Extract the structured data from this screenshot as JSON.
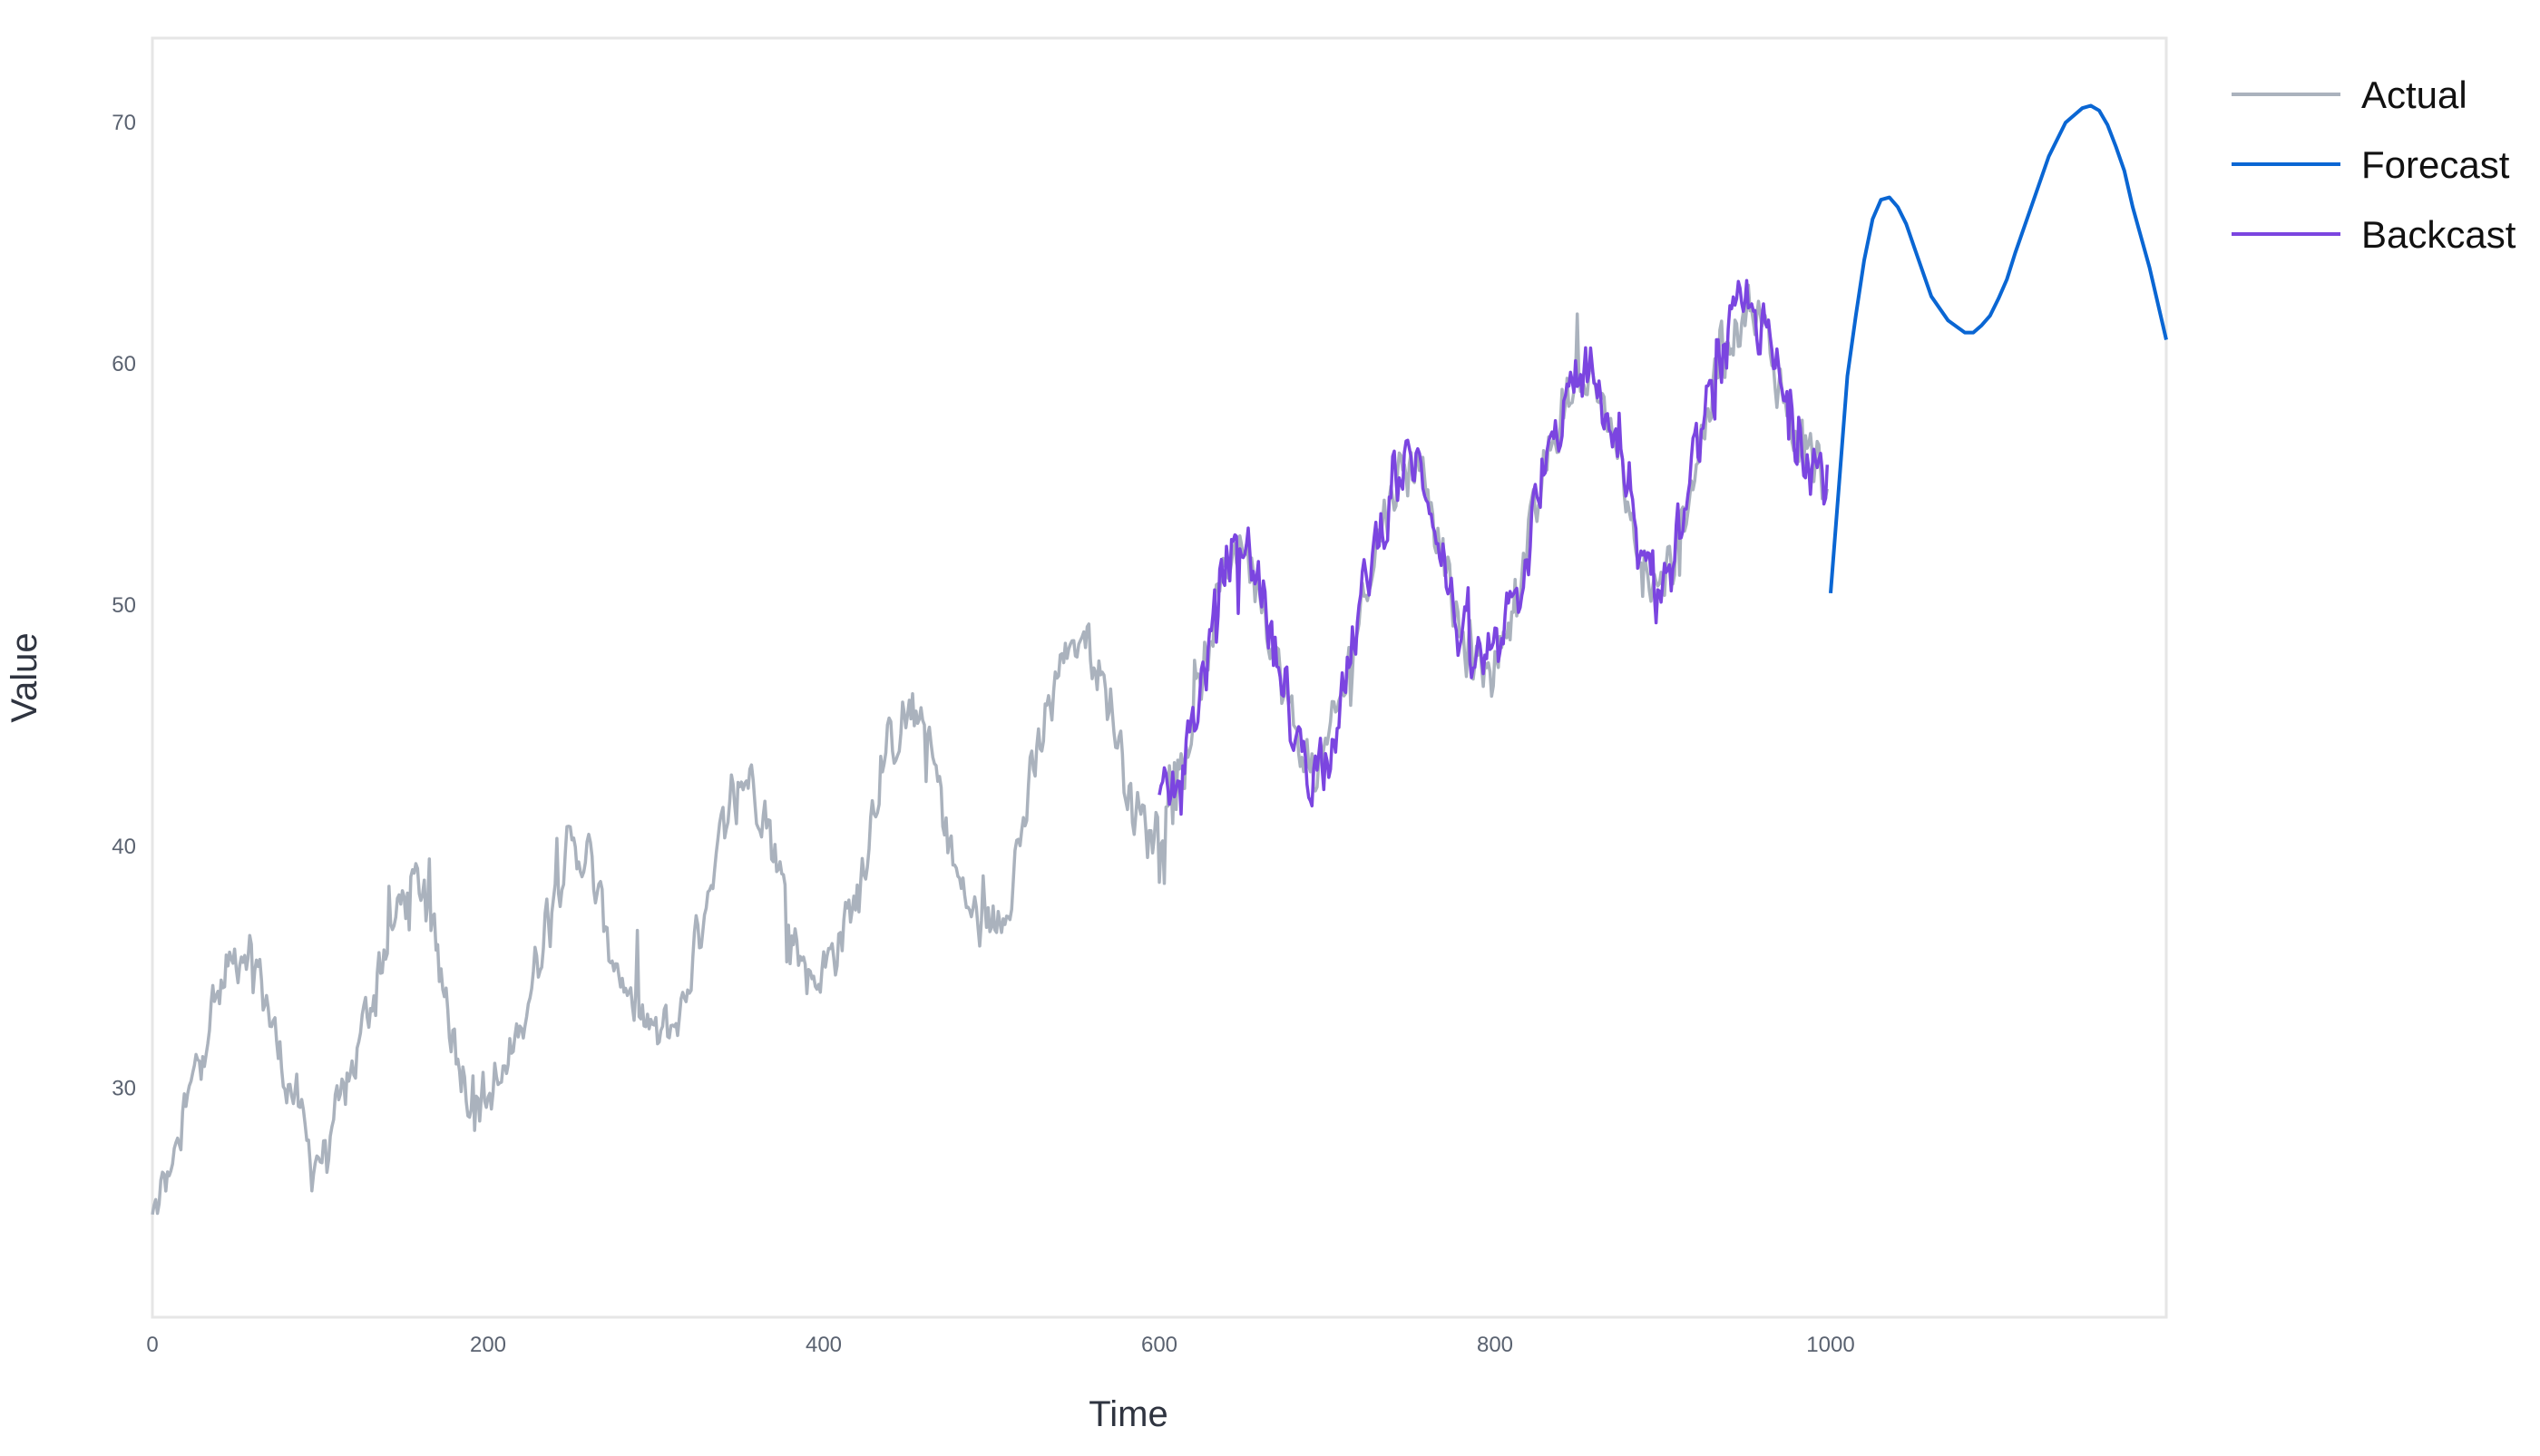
{
  "chart_data": {
    "type": "line",
    "title": "",
    "xlabel": "Time",
    "ylabel": "Value",
    "xlim": [
      0,
      1200
    ],
    "ylim": [
      20.5,
      73.5
    ],
    "x_ticks": [
      0,
      200,
      400,
      600,
      800,
      1000
    ],
    "y_ticks": [
      30,
      40,
      50,
      60,
      70
    ],
    "grid": false,
    "legend_position": "top-right (outside plot)",
    "colors": {
      "Actual": "#aab2bd",
      "Forecast": "#0a66d3",
      "Backcast": "#7b45e0",
      "frame": "#e6e6e6"
    },
    "series": [
      {
        "name": "Actual",
        "x": [
          0,
          15,
          30,
          45,
          55,
          65,
          75,
          85,
          95,
          105,
          120,
          135,
          150,
          160,
          170,
          180,
          190,
          200,
          210,
          225,
          240,
          250,
          260,
          270,
          285,
          300,
          315,
          330,
          345,
          355,
          365,
          375,
          385,
          395,
          405,
          420,
          435,
          450,
          460,
          470,
          480,
          490,
          500,
          510,
          525,
          540,
          555,
          565,
          575,
          585,
          595,
          610,
          625,
          640,
          650,
          660,
          670,
          680,
          690,
          700,
          710,
          725,
          740,
          750,
          760,
          770,
          780,
          790,
          800,
          815,
          830,
          845,
          855,
          865,
          875,
          885,
          895,
          905,
          920,
          935,
          950,
          960,
          970,
          980,
          990,
          998
        ],
        "values": [
          24.5,
          27.5,
          32,
          35,
          36,
          34.5,
          31.5,
          29.5,
          27,
          27.5,
          31,
          35,
          38,
          38.5,
          35.5,
          32,
          29.5,
          29.5,
          30.5,
          34,
          38.5,
          40,
          39.5,
          36.5,
          33.5,
          32,
          33,
          38,
          42,
          43,
          41.5,
          38.5,
          35.5,
          34.5,
          35.5,
          38,
          43.5,
          45.5,
          45,
          42,
          38.5,
          37,
          36.5,
          38,
          43,
          47.5,
          49,
          47.5,
          44.5,
          41.5,
          40.5,
          42.5,
          46.5,
          52,
          52.5,
          51,
          47.5,
          45,
          43,
          44,
          46.5,
          51.5,
          55,
          56,
          55,
          51.5,
          48.5,
          47.5,
          47.5,
          51,
          55.5,
          59,
          59.5,
          58.5,
          55.5,
          52,
          50.5,
          51.5,
          56,
          60.5,
          62.5,
          61.5,
          59,
          57,
          56,
          55
        ]
      },
      {
        "name": "Backcast",
        "x": [
          600,
          610,
          625,
          640,
          650,
          660,
          670,
          680,
          690,
          700,
          710,
          725,
          740,
          750,
          760,
          770,
          780,
          790,
          800,
          815,
          830,
          845,
          855,
          865,
          875,
          885,
          895,
          905,
          920,
          935,
          950,
          960,
          970,
          980,
          990,
          998
        ],
        "values": [
          41.5,
          42.5,
          46.5,
          52,
          52.5,
          51,
          47.5,
          45,
          43,
          44,
          46.5,
          51.5,
          55,
          56,
          55,
          51.5,
          48.5,
          47.5,
          47.5,
          51,
          55.5,
          59,
          59.5,
          58.5,
          55.5,
          52,
          50.5,
          51.5,
          56,
          60.5,
          62.5,
          61.5,
          59,
          57,
          56,
          55
        ]
      },
      {
        "name": "Forecast",
        "x": [
          1000,
          1005,
          1010,
          1015,
          1020,
          1025,
          1030,
          1035,
          1040,
          1045,
          1050,
          1060,
          1070,
          1080,
          1085,
          1090,
          1095,
          1100,
          1105,
          1110,
          1120,
          1130,
          1140,
          1150,
          1155,
          1160,
          1165,
          1170,
          1175,
          1180,
          1190,
          1200
        ],
        "values": [
          50.5,
          55,
          59.5,
          62,
          64.3,
          66,
          66.8,
          66.9,
          66.5,
          65.8,
          64.8,
          62.8,
          61.8,
          61.3,
          61.3,
          61.6,
          62,
          62.7,
          63.5,
          64.6,
          66.6,
          68.6,
          70,
          70.6,
          70.7,
          70.5,
          69.9,
          69,
          68,
          66.5,
          64,
          61
        ]
      }
    ]
  }
}
